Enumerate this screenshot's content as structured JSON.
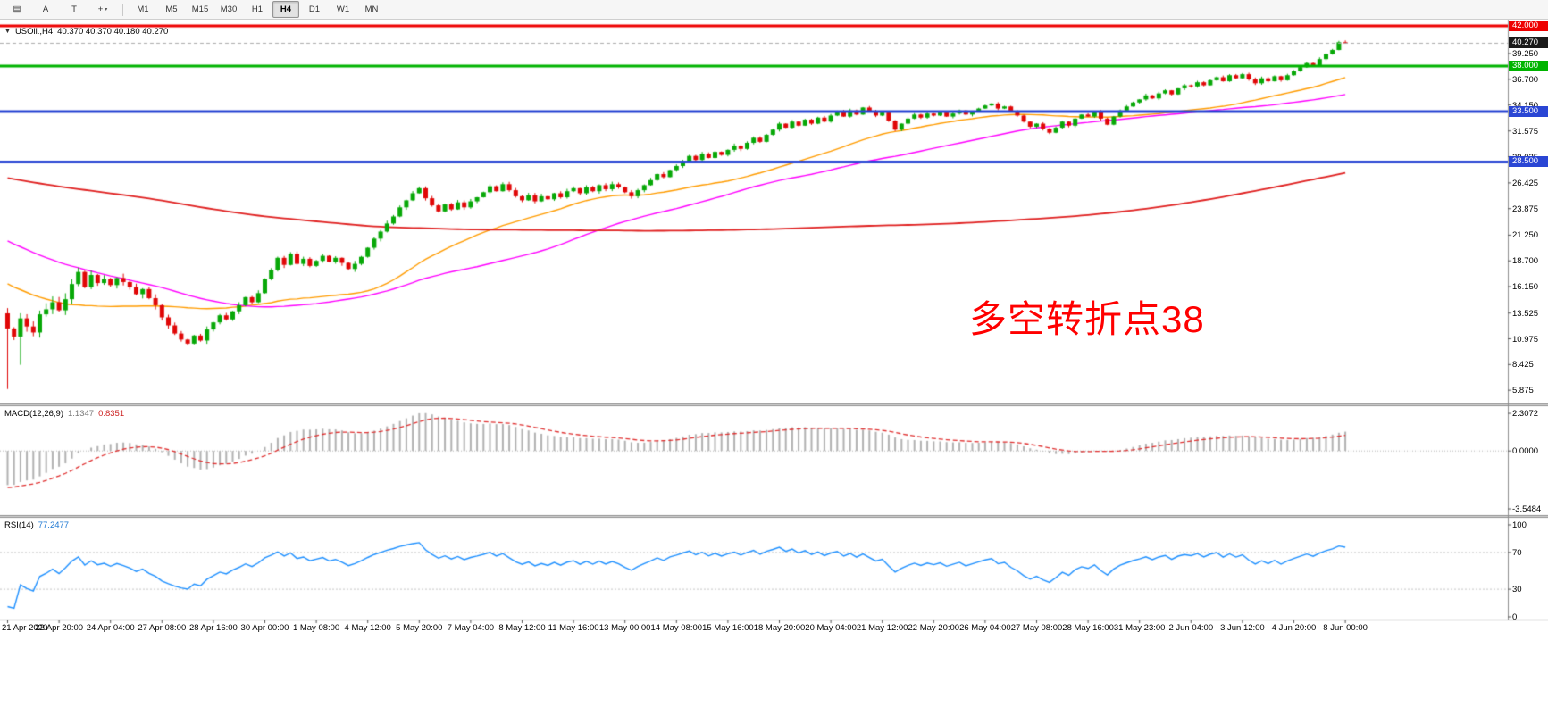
{
  "icons": {
    "symbol_dropdown": "▼"
  },
  "toolbar": {
    "tools": [
      {
        "name": "chart-window-icon",
        "glyph": "▤"
      },
      {
        "name": "text-tool-button",
        "glyph": "A"
      },
      {
        "name": "type-tool-button",
        "glyph": "T"
      },
      {
        "name": "crosshair-tool-button",
        "glyph": "+",
        "caret": "▾"
      }
    ],
    "timeframes": [
      "M1",
      "M5",
      "M15",
      "M30",
      "H1",
      "H4",
      "D1",
      "W1",
      "MN"
    ],
    "active_timeframe": "H4"
  },
  "chart": {
    "symbol_label": "USOil.,H4",
    "ohlc_values": "40.370 40.370 40.180 40.270",
    "annotation": {
      "text": "多空转折点38",
      "color": "#FF0000"
    },
    "current_price_label": "40.270",
    "current_price": 40.27,
    "current_badge_color": "#1a1a1a",
    "hlines": [
      {
        "price": 42.0,
        "label": "42.000",
        "color": "#EE0000",
        "width": 3
      },
      {
        "price": 38.0,
        "label": "38.000",
        "color": "#00B400",
        "width": 3
      },
      {
        "price": 33.5,
        "label": "33.500",
        "color": "#2A46D4",
        "width": 3
      },
      {
        "price": 28.5,
        "label": "28.500",
        "color": "#2A46D4",
        "width": 3
      }
    ],
    "y_ticks": [
      "39.250",
      "36.700",
      "34.150",
      "31.575",
      "29.025",
      "26.425",
      "23.875",
      "21.250",
      "18.700",
      "16.150",
      "13.525",
      "10.975",
      "8.425",
      "5.875"
    ]
  },
  "macd": {
    "name": "MACD(12,26,9)",
    "value_main": "1.1347",
    "value_signal": "0.8351",
    "ticks": [
      "2.3072",
      "0.0000",
      "-3.5484"
    ],
    "fast": 12,
    "slow": 26,
    "signal": 9
  },
  "rsi": {
    "name": "RSI(14)",
    "value": "77.2477",
    "period": 14,
    "ticks": [
      "100",
      "70",
      "30",
      "0"
    ],
    "levels": [
      70,
      30
    ]
  },
  "x_axis": {
    "bars_per_label": 8,
    "labels": [
      "21 Apr 2020",
      "22 Apr 20:00",
      "24 Apr 04:00",
      "27 Apr 08:00",
      "28 Apr 16:00",
      "30 Apr 00:00",
      "1 May 08:00",
      "4 May 12:00",
      "5 May 20:00",
      "7 May 04:00",
      "8 May 12:00",
      "11 May 16:00",
      "13 May 00:00",
      "14 May 08:00",
      "15 May 16:00",
      "18 May 20:00",
      "20 May 04:00",
      "21 May 12:00",
      "22 May 20:00",
      "26 May 04:00",
      "27 May 08:00",
      "28 May 16:00",
      "31 May 23:00",
      "2 Jun 04:00",
      "3 Jun 12:00",
      "4 Jun 20:00",
      "8 Jun 00:00"
    ]
  },
  "chart_data": {
    "type": "candlestick+indicators",
    "symbol": "USOil",
    "timeframe": "H4",
    "ylim": [
      4.56,
      42.61
    ],
    "last_bar_ohlc": {
      "open": 40.37,
      "high": 40.37,
      "low": 40.18,
      "close": 40.27
    },
    "first_open": 13.5,
    "low_overrides": [
      [
        0,
        6.0
      ],
      [
        2,
        8.4
      ]
    ],
    "closes": [
      12.0,
      11.2,
      13.0,
      12.2,
      11.6,
      13.4,
      13.9,
      14.6,
      13.8,
      14.9,
      16.4,
      17.6,
      16.1,
      17.3,
      16.5,
      16.9,
      16.3,
      17.0,
      16.6,
      16.1,
      15.4,
      15.9,
      15.0,
      14.3,
      13.1,
      12.3,
      11.5,
      10.9,
      10.5,
      11.3,
      10.8,
      11.9,
      12.6,
      13.3,
      12.9,
      13.7,
      14.3,
      15.1,
      14.6,
      15.5,
      16.9,
      17.8,
      19.0,
      18.3,
      19.4,
      18.4,
      18.9,
      18.2,
      18.7,
      19.2,
      18.6,
      19.0,
      18.5,
      17.9,
      18.4,
      19.1,
      20.0,
      20.9,
      21.6,
      22.4,
      23.1,
      24.0,
      24.7,
      25.4,
      25.9,
      24.9,
      24.2,
      23.6,
      24.3,
      23.8,
      24.5,
      24.0,
      24.6,
      25.0,
      25.5,
      26.1,
      25.6,
      26.3,
      25.7,
      25.1,
      24.7,
      25.2,
      24.6,
      25.1,
      24.8,
      25.4,
      25.0,
      25.6,
      25.9,
      25.4,
      26.0,
      25.6,
      26.2,
      25.8,
      26.3,
      26.0,
      25.5,
      25.1,
      25.7,
      26.2,
      26.7,
      27.3,
      27.0,
      27.7,
      28.1,
      28.6,
      29.1,
      28.7,
      29.3,
      28.9,
      29.5,
      29.2,
      29.7,
      30.1,
      29.8,
      30.4,
      30.9,
      30.5,
      31.2,
      31.7,
      32.3,
      31.9,
      32.5,
      32.1,
      32.7,
      32.3,
      32.9,
      32.5,
      33.1,
      33.5,
      33.0,
      33.6,
      33.2,
      33.9,
      33.5,
      33.1,
      33.4,
      32.6,
      31.7,
      32.3,
      32.8,
      33.2,
      32.9,
      33.3,
      33.1,
      33.4,
      33.0,
      33.3,
      33.6,
      33.2,
      33.5,
      33.8,
      34.1,
      34.3,
      33.8,
      34.0,
      33.5,
      33.1,
      32.5,
      32.0,
      32.3,
      31.8,
      31.4,
      31.9,
      32.5,
      32.1,
      32.8,
      33.2,
      33.0,
      33.5,
      32.8,
      32.2,
      33.0,
      33.6,
      34.0,
      34.4,
      34.7,
      35.1,
      34.8,
      35.3,
      35.6,
      35.2,
      35.8,
      36.1,
      36.0,
      36.4,
      36.1,
      36.6,
      36.9,
      36.5,
      37.1,
      36.8,
      37.2,
      36.7,
      36.3,
      36.8,
      36.5,
      37.0,
      36.6,
      37.1,
      37.5,
      37.9,
      38.3,
      38.1,
      38.7,
      39.2,
      39.6,
      40.37,
      40.27
    ],
    "ma_seed_waypoints": [
      [
        -200,
        34
      ],
      [
        -170,
        33
      ],
      [
        -140,
        29
      ],
      [
        -120,
        26
      ],
      [
        -99,
        27
      ],
      [
        -80,
        28
      ],
      [
        -60,
        30
      ],
      [
        -45,
        26
      ],
      [
        -30,
        21
      ],
      [
        -15,
        16
      ],
      [
        -6,
        12
      ],
      [
        -1,
        12.5
      ]
    ],
    "moving_averages": [
      {
        "name": "SMA34",
        "color": "#FF9C00",
        "width": 1.4
      },
      {
        "name": "SMA60",
        "color": "#FF00FF",
        "width": 1.4
      },
      {
        "name": "SMA200",
        "color": "#E02020",
        "width": 1.8
      }
    ],
    "candle_up_color": "#07A807",
    "candle_down_color": "#E00707",
    "macd_hist_color": "#b2b2b2",
    "macd_signal_color": "#E03030",
    "rsi_color": "#1E90FF"
  }
}
